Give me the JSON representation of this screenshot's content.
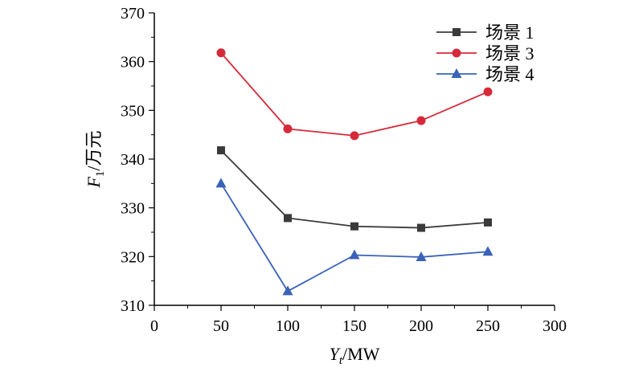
{
  "chart_data": {
    "type": "line",
    "x": [
      50,
      100,
      150,
      200,
      250
    ],
    "xlim": [
      0,
      300
    ],
    "ylim": [
      310,
      370
    ],
    "xticks": [
      "0",
      "50",
      "100",
      "150",
      "200",
      "250",
      "300"
    ],
    "yticks": [
      "310",
      "320",
      "330",
      "340",
      "350",
      "360",
      "370"
    ],
    "xlabel": {
      "main": "Y",
      "sub": "t",
      "unit": "/MW"
    },
    "ylabel": {
      "main": "F",
      "sub": "1",
      "unit": "/万元"
    },
    "grid": false,
    "legend_position": "top-right",
    "series": [
      {
        "name": "场景 1",
        "marker": "square",
        "color": "#3a3a3a",
        "values": [
          341.8,
          327.9,
          326.2,
          325.9,
          327.0
        ]
      },
      {
        "name": "场景 3",
        "marker": "circle",
        "color": "#d62a3a",
        "values": [
          361.8,
          346.2,
          344.8,
          347.9,
          353.8
        ]
      },
      {
        "name": "场景 4",
        "marker": "triangle",
        "color": "#3a62b8",
        "values": [
          335.0,
          312.9,
          320.3,
          319.9,
          321.0
        ]
      }
    ]
  }
}
